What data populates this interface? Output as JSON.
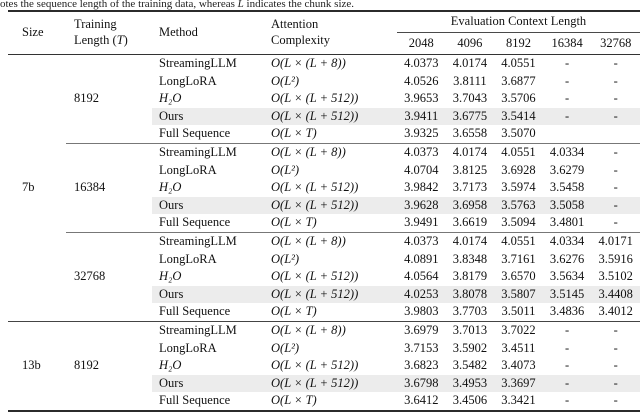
{
  "caption_fragment": {
    "part_a": "otes the sequence length of the training data, whereas ",
    "variable": "L",
    "part_b": " indicates the chunk size."
  },
  "colors": {
    "highlight_row": "#ececec",
    "rule_heavy": "#2b2b2b",
    "rule_light": "#777777",
    "text": "#111111"
  },
  "table": {
    "headers": {
      "size": "Size",
      "training_line1": "Training",
      "training_line2_pre": "Length (",
      "training_line2_var": "T",
      "training_line2_post": ")",
      "method": "Method",
      "complexity_line1": "Attention",
      "complexity_line2": "Complexity",
      "eval_group": "Evaluation Context Length",
      "eval_cols": [
        "2048",
        "4096",
        "8192",
        "16384",
        "32768"
      ]
    },
    "highlight_method": "Ours",
    "sections": [
      {
        "size": "7b",
        "blocks": [
          {
            "training_length": "8192",
            "rows": [
              {
                "method": "StreamingLLM",
                "complexity": "O(L × (L + 8))",
                "values": [
                  "4.0373",
                  "4.0174",
                  "4.0551",
                  "-",
                  "-"
                ]
              },
              {
                "method": "LongLoRA",
                "complexity": "O(L²)",
                "values": [
                  "4.0526",
                  "3.8111",
                  "3.6877",
                  "-",
                  "-"
                ]
              },
              {
                "method": "H₂O",
                "method_italic": true,
                "complexity": "O(L × (L + 512))",
                "values": [
                  "3.9653",
                  "3.7043",
                  "3.5706",
                  "-",
                  "-"
                ]
              },
              {
                "method": "Ours",
                "highlight": true,
                "complexity": "O(L × (L + 512))",
                "values": [
                  "3.9411",
                  "3.6775",
                  "3.5414",
                  "-",
                  "-"
                ]
              },
              {
                "method": "Full Sequence",
                "complexity": "O(L × T)",
                "values": [
                  "3.9325",
                  "3.6558",
                  "3.5070",
                  "",
                  ""
                ]
              }
            ]
          },
          {
            "training_length": "16384",
            "rows": [
              {
                "method": "StreamingLLM",
                "complexity": "O(L × (L + 8))",
                "values": [
                  "4.0373",
                  "4.0174",
                  "4.0551",
                  "4.0334",
                  "-"
                ]
              },
              {
                "method": "LongLoRA",
                "complexity": "O(L²)",
                "values": [
                  "4.0704",
                  "3.8125",
                  "3.6928",
                  "3.6279",
                  "-"
                ]
              },
              {
                "method": "H₂O",
                "method_italic": true,
                "complexity": "O(L × (L + 512))",
                "values": [
                  "3.9842",
                  "3.7173",
                  "3.5974",
                  "3.5458",
                  "-"
                ]
              },
              {
                "method": "Ours",
                "highlight": true,
                "complexity": "O(L × (L + 512))",
                "values": [
                  "3.9628",
                  "3.6958",
                  "3.5763",
                  "3.5058",
                  "-"
                ]
              },
              {
                "method": "Full Sequence",
                "complexity": "O(L × T)",
                "values": [
                  "3.9491",
                  "3.6619",
                  "3.5094",
                  "3.4801",
                  "-"
                ]
              }
            ]
          },
          {
            "training_length": "32768",
            "rows": [
              {
                "method": "StreamingLLM",
                "complexity": "O(L × (L + 8))",
                "values": [
                  "4.0373",
                  "4.0174",
                  "4.0551",
                  "4.0334",
                  "4.0171"
                ]
              },
              {
                "method": "LongLoRA",
                "complexity": "O(L²)",
                "values": [
                  "4.0891",
                  "3.8348",
                  "3.7161",
                  "3.6276",
                  "3.5916"
                ]
              },
              {
                "method": "H₂O",
                "method_italic": true,
                "complexity": "O(L × (L + 512))",
                "values": [
                  "4.0564",
                  "3.8179",
                  "3.6570",
                  "3.5634",
                  "3.5102"
                ]
              },
              {
                "method": "Ours",
                "highlight": true,
                "complexity": "O(L × (L + 512))",
                "values": [
                  "4.0253",
                  "3.8078",
                  "3.5807",
                  "3.5145",
                  "3.4408"
                ]
              },
              {
                "method": "Full Sequence",
                "complexity": "O(L × T)",
                "values": [
                  "3.9803",
                  "3.7703",
                  "3.5011",
                  "3.4836",
                  "3.4012"
                ]
              }
            ]
          }
        ]
      },
      {
        "size": "13b",
        "blocks": [
          {
            "training_length": "8192",
            "rows": [
              {
                "method": "StreamingLLM",
                "complexity": "O(L × (L + 8))",
                "values": [
                  "3.6979",
                  "3.7013",
                  "3.7022",
                  "-",
                  "-"
                ]
              },
              {
                "method": "LongLoRA",
                "complexity": "O(L²)",
                "values": [
                  "3.7153",
                  "3.5902",
                  "3.4511",
                  "-",
                  "-"
                ]
              },
              {
                "method": "H₂O",
                "method_italic": true,
                "complexity": "O(L × (L + 512))",
                "values": [
                  "3.6823",
                  "3.5482",
                  "3.4073",
                  "-",
                  "-"
                ]
              },
              {
                "method": "Ours",
                "highlight": true,
                "complexity": "O(L × (L + 512))",
                "values": [
                  "3.6798",
                  "3.4953",
                  "3.3697",
                  "-",
                  "-"
                ]
              },
              {
                "method": "Full Sequence",
                "complexity": "O(L × T)",
                "values": [
                  "3.6412",
                  "3.4506",
                  "3.3421",
                  "-",
                  "-"
                ]
              }
            ]
          }
        ]
      }
    ]
  }
}
